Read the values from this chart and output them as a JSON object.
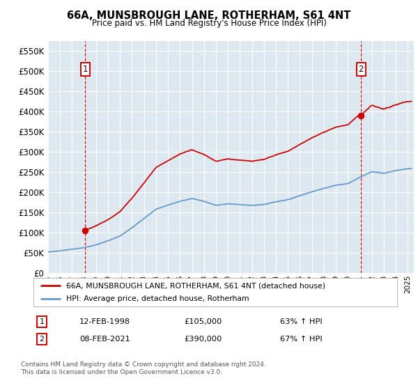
{
  "title": "66A, MUNSBROUGH LANE, ROTHERHAM, S61 4NT",
  "subtitle": "Price paid vs. HM Land Registry's House Price Index (HPI)",
  "legend_line1": "66A, MUNSBROUGH LANE, ROTHERHAM, S61 4NT (detached house)",
  "legend_line2": "HPI: Average price, detached house, Rotherham",
  "footnote": "Contains HM Land Registry data © Crown copyright and database right 2024.\nThis data is licensed under the Open Government Licence v3.0.",
  "sale1_date": "12-FEB-1998",
  "sale1_price": 105000,
  "sale1_hpi": "63% ↑ HPI",
  "sale2_date": "08-FEB-2021",
  "sale2_price": 390000,
  "sale2_hpi": "67% ↑ HPI",
  "red_color": "#cc0000",
  "blue_color": "#6699cc",
  "bg_color": "#dde8f0",
  "grid_color": "#ffffff",
  "ylim": [
    0,
    575000
  ],
  "yticks": [
    0,
    50000,
    100000,
    150000,
    200000,
    250000,
    300000,
    350000,
    400000,
    450000,
    500000,
    550000
  ],
  "ytick_labels": [
    "£0",
    "£50K",
    "£100K",
    "£150K",
    "£200K",
    "£250K",
    "£300K",
    "£350K",
    "£400K",
    "£450K",
    "£500K",
    "£550K"
  ],
  "hpi_years": [
    1995,
    1996,
    1997,
    1998,
    1999,
    2000,
    2001,
    2002,
    2003,
    2004,
    2005,
    2006,
    2007,
    2008,
    2009,
    2010,
    2011,
    2012,
    2013,
    2014,
    2015,
    2016,
    2017,
    2018,
    2019,
    2020,
    2021,
    2022,
    2023,
    2024,
    2025
  ],
  "hpi_blue": [
    52000,
    55000,
    59000,
    63000,
    70000,
    80000,
    92000,
    112000,
    135000,
    158000,
    168000,
    178000,
    185000,
    178000,
    168000,
    172000,
    170000,
    168000,
    170000,
    177000,
    182000,
    192000,
    202000,
    210000,
    218000,
    222000,
    238000,
    252000,
    248000,
    255000,
    260000
  ],
  "red_hpi_base": [
    63000,
    63000,
    63000,
    63000,
    70000,
    80000,
    92000,
    112000,
    135000,
    158000,
    168000,
    178000,
    185000,
    178000,
    168000,
    172000,
    170000,
    168000,
    170000,
    177000,
    182000,
    192000,
    202000,
    210000,
    218000,
    222000,
    238000,
    252000,
    248000,
    255000,
    260000
  ],
  "sale1_year": 1998.1,
  "sale2_year": 2021.1,
  "xlim_start": 1995,
  "xlim_end": 2025.5
}
